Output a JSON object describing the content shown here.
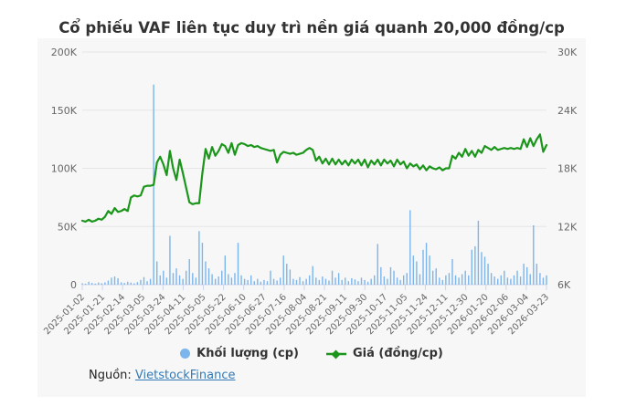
{
  "title": "Cổ phiếu VAF liên tục duy trì nền giá quanh 20,000 đồng/cp",
  "legend": {
    "volume_label": "Khối lượng (cp)",
    "price_label": "Giá (đồng/cp)"
  },
  "source": {
    "prefix": "Nguồn:",
    "link_text": "VietstockFinance"
  },
  "colors": {
    "volume": "#7cb5ec",
    "price": "#1b961b",
    "grid": "#e6e6e6",
    "axis": "#ccd6eb",
    "tick_label": "#666666",
    "title": "#333333",
    "card_bg": "#f7f7f7",
    "link": "#337ab7"
  },
  "chart_data": {
    "type": "bar",
    "subtype": "column-volume + line-price combo",
    "title": "Cổ phiếu VAF liên tục duy trì nền giá quanh 20,000 đồng/cp",
    "xlabel": "",
    "ylabel_left": "",
    "ylabel_right": "",
    "grid": true,
    "legend_position": "bottom-center",
    "x_range": [
      "2025-01-02",
      "2026-03-23"
    ],
    "x_tick_labels": [
      "2025-01-02",
      "2025-01-21",
      "2025-02-14",
      "2025-03-05",
      "2025-03-24",
      "2025-04-11",
      "2025-05-05",
      "2025-05-22",
      "2025-06-10",
      "2025-06-27",
      "2025-07-16",
      "2025-08-04",
      "2025-08-21",
      "2025-09-11",
      "2025-09-30",
      "2025-10-17",
      "2025-11-05",
      "2025-11-24",
      "2025-12-11",
      "2025-12-30",
      "2026-01-20",
      "2026-02-06",
      "2026-03-04",
      "2026-03-23"
    ],
    "y_left": {
      "min": 0,
      "max": 200000,
      "tick_labels": [
        "0",
        "50K",
        "100K",
        "150K",
        "200K"
      ]
    },
    "y_right": {
      "min": 6000,
      "max": 30000,
      "tick_labels": [
        "6K",
        "12K",
        "18K",
        "24K",
        "30K"
      ]
    },
    "series": [
      {
        "name": "Khối lượng (cp)",
        "type": "column",
        "axis": "left",
        "color": "#7cb5ec",
        "values": [
          1200,
          800,
          2500,
          1500,
          900,
          1800,
          1200,
          2000,
          3500,
          6000,
          7000,
          5500,
          2000,
          1500,
          2500,
          1800,
          1200,
          2200,
          4000,
          6500,
          3000,
          5000,
          172000,
          20000,
          8000,
          12000,
          6000,
          42000,
          10000,
          14000,
          8000,
          5000,
          12000,
          22000,
          10000,
          6000,
          46000,
          36000,
          20000,
          14000,
          9000,
          5000,
          7000,
          12000,
          25000,
          9000,
          6000,
          10000,
          36000,
          8000,
          5000,
          4000,
          8000,
          3000,
          5000,
          2500,
          4000,
          3000,
          12000,
          5000,
          3500,
          6000,
          25000,
          18000,
          13000,
          5000,
          4000,
          6500,
          3000,
          5000,
          8000,
          16000,
          6000,
          4000,
          7000,
          5000,
          3500,
          12000,
          6000,
          10000,
          4000,
          6000,
          3000,
          5500,
          4500,
          3000,
          6000,
          4000,
          2500,
          5000,
          8000,
          35000,
          15000,
          7000,
          5000,
          15000,
          12000,
          6000,
          4000,
          8000,
          10000,
          64000,
          25000,
          20000,
          9000,
          30000,
          36000,
          25000,
          12000,
          14000,
          6000,
          4000,
          8000,
          10000,
          22000,
          8000,
          6000,
          9000,
          12000,
          8000,
          30000,
          33000,
          55000,
          28000,
          24000,
          18000,
          10000,
          7000,
          5000,
          8000,
          12000,
          6000,
          5000,
          8000,
          12000,
          7000,
          18000,
          15000,
          9000,
          51000,
          18000,
          10000,
          6000,
          8000
        ]
      },
      {
        "name": "Giá (đồng/cp)",
        "type": "line",
        "axis": "right",
        "color": "#1b961b",
        "values": [
          12600,
          12500,
          12700,
          12500,
          12600,
          12800,
          12700,
          13000,
          13600,
          13300,
          13900,
          13500,
          13600,
          13800,
          13600,
          15000,
          15200,
          15100,
          15200,
          16100,
          16200,
          16200,
          16300,
          18600,
          19200,
          18400,
          17300,
          19800,
          18000,
          16800,
          18900,
          17500,
          16000,
          14500,
          14300,
          14400,
          14400,
          17500,
          20000,
          19000,
          20200,
          19300,
          19800,
          20500,
          20300,
          19600,
          20600,
          19400,
          20400,
          20600,
          20500,
          20300,
          20400,
          20200,
          20300,
          20100,
          20000,
          19900,
          19800,
          19900,
          18600,
          19400,
          19700,
          19600,
          19500,
          19600,
          19400,
          19500,
          19600,
          19900,
          20100,
          19900,
          18800,
          19200,
          18500,
          19000,
          18400,
          19000,
          18400,
          18900,
          18400,
          18800,
          18300,
          18900,
          18500,
          18900,
          18300,
          18900,
          18100,
          18800,
          18400,
          18900,
          18300,
          18900,
          18500,
          18800,
          18200,
          18900,
          18400,
          18700,
          18000,
          18500,
          18200,
          18400,
          17900,
          18300,
          17800,
          18200,
          18000,
          17900,
          18100,
          17800,
          18000,
          18000,
          19300,
          19000,
          19600,
          19200,
          20000,
          19300,
          19800,
          19200,
          19900,
          19600,
          20300,
          20100,
          19900,
          20200,
          19900,
          20000,
          20100,
          20000,
          20100,
          20000,
          20100,
          20000,
          21000,
          20200,
          21100,
          20300,
          21000,
          21500,
          19700,
          20400
        ]
      }
    ]
  }
}
